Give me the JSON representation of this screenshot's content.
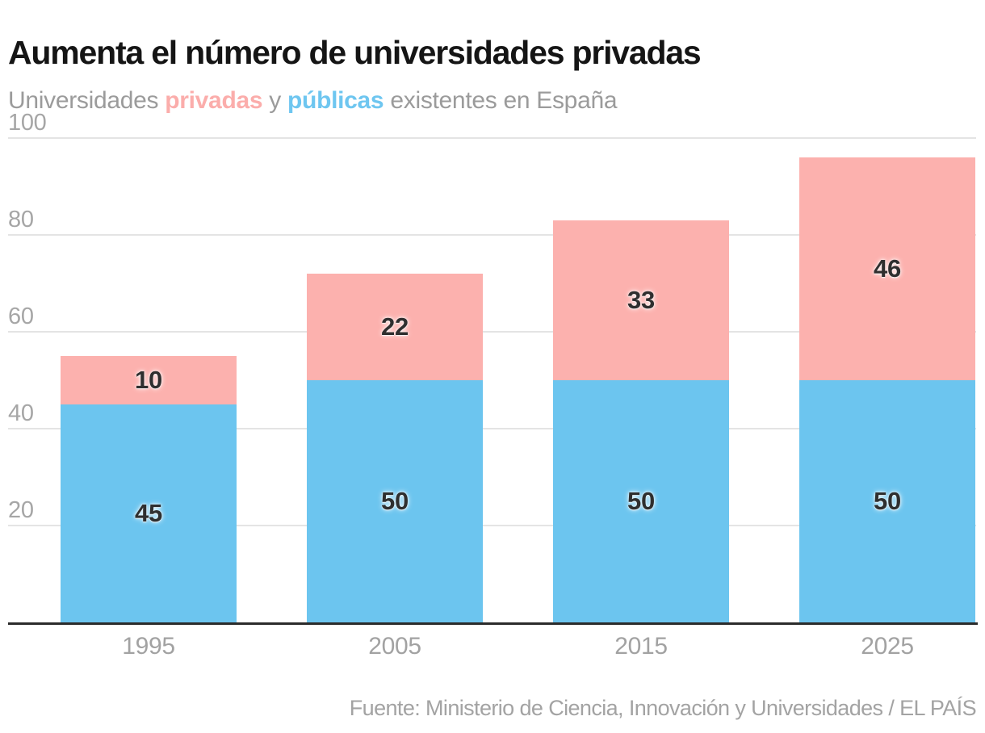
{
  "header": {
    "title": "Aumenta el número de universidades privadas",
    "subtitle": {
      "prefix": "Universidades ",
      "privadas_label": "privadas",
      "conjunction": " y ",
      "publicas_label": "públicas",
      "suffix": " existentes en España"
    }
  },
  "chart_data": {
    "type": "bar",
    "stacked": true,
    "title": "Aumenta el número de universidades privadas",
    "subtitle": "Universidades privadas y públicas existentes en España",
    "categories": [
      "1995",
      "2005",
      "2015",
      "2025"
    ],
    "series": [
      {
        "name": "públicas",
        "color": "#6cc5ef",
        "values": [
          45,
          50,
          50,
          50
        ]
      },
      {
        "name": "privadas",
        "color": "#fcb1ae",
        "values": [
          10,
          22,
          33,
          46
        ]
      }
    ],
    "totals": [
      55,
      72,
      83,
      96
    ],
    "yticks": [
      20,
      40,
      60,
      80,
      100
    ],
    "ylim": [
      0,
      100
    ],
    "xlabel": "",
    "ylabel": "",
    "grid": "horizontal",
    "legend_position": "inline-in-subtitle",
    "value_labels": "inside-segments"
  },
  "footer": {
    "source": "Fuente: Ministerio de Ciencia, Innovación y Universidades / EL PAÍS"
  },
  "colors": {
    "privadas": "#fcb1ae",
    "publicas": "#6cc5ef",
    "title_text": "#151515",
    "subtitle_text": "#9b9b9b",
    "tick_text": "#a4a4a4",
    "gridline": "#e4e4e4",
    "axis_line": "#2b2b2b",
    "bar_value_text": "#2f2f2f"
  }
}
